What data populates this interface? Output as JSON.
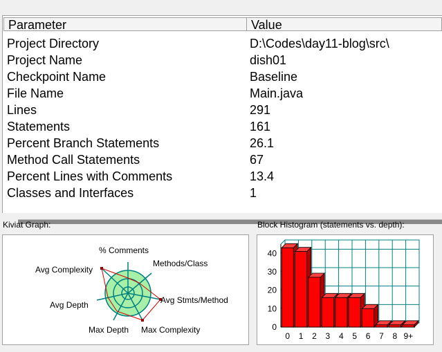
{
  "table": {
    "headers": {
      "parameter": "Parameter",
      "value": "Value"
    },
    "rows": [
      {
        "name": "Project Directory",
        "value": "D:\\Codes\\day11-blog\\src\\"
      },
      {
        "name": "Project Name",
        "value": "dish01"
      },
      {
        "name": "Checkpoint Name",
        "value": "Baseline"
      },
      {
        "name": "File Name",
        "value": "Main.java"
      },
      {
        "name": "Lines",
        "value": "291"
      },
      {
        "name": "Statements",
        "value": "161"
      },
      {
        "name": "Percent Branch Statements",
        "value": "26.1"
      },
      {
        "name": "Method Call Statements",
        "value": "67"
      },
      {
        "name": "Percent Lines with Comments",
        "value": "13.4"
      },
      {
        "name": "Classes and Interfaces",
        "value": "1"
      }
    ]
  },
  "kiviat": {
    "title": "Kiviat Graph:",
    "axes": [
      "% Comments",
      "Methods/Class",
      "Avg Stmts/Method",
      "Max Complexity",
      "Max Depth",
      "Avg Depth",
      "Avg Complexity"
    ]
  },
  "histogram": {
    "title": "Block Histogram (statements vs. depth):",
    "bar_color": "#ff0000",
    "grid_color": "#008080"
  },
  "chart_data": [
    {
      "type": "bar",
      "title": "Block Histogram (statements vs. depth):",
      "categories": [
        "0",
        "1",
        "2",
        "3",
        "4",
        "5",
        "6",
        "7",
        "8",
        "9+"
      ],
      "values": [
        43,
        41,
        27,
        16,
        16,
        16,
        10,
        0,
        0,
        0
      ],
      "ylim": [
        0,
        45
      ],
      "yticks": [
        "0",
        "10",
        "20",
        "30",
        "40"
      ],
      "grid": true
    }
  ]
}
